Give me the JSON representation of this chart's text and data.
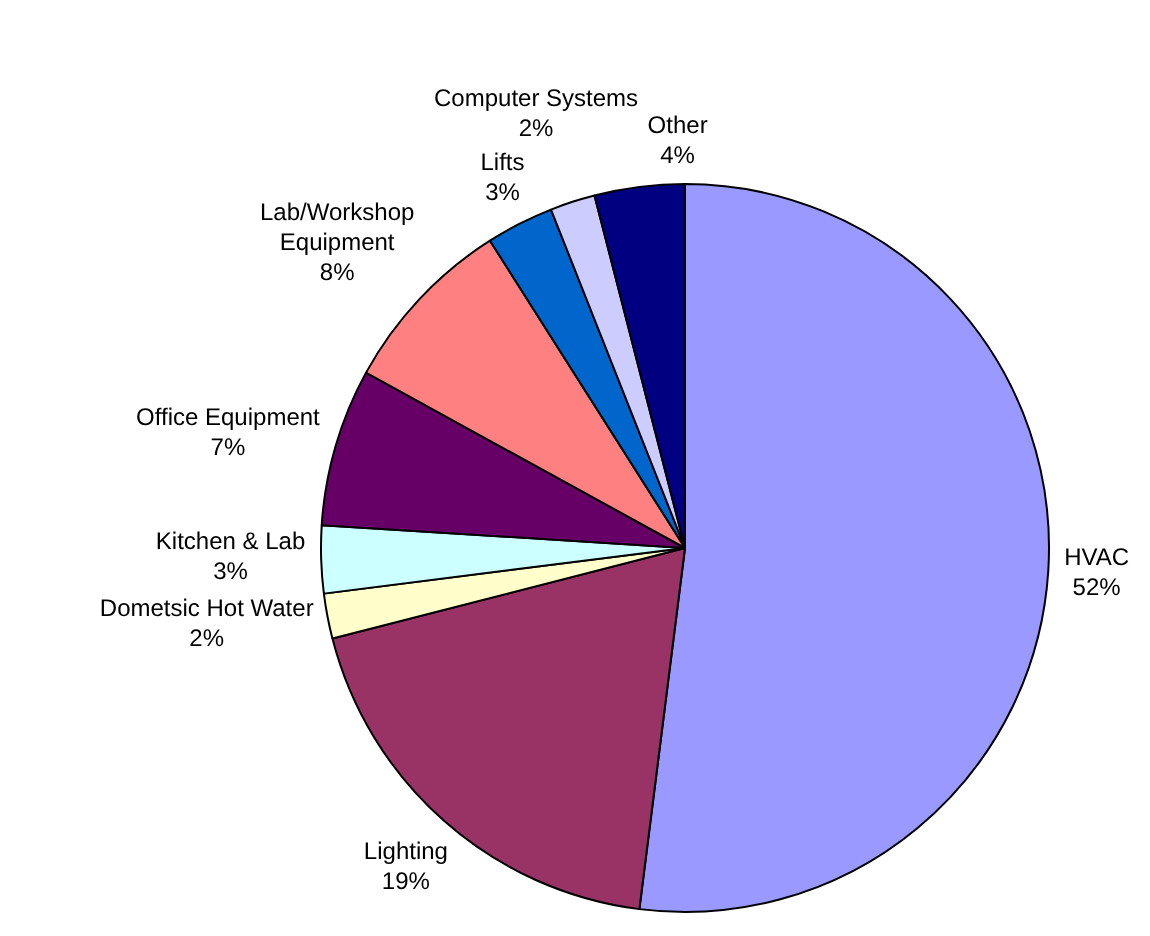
{
  "chart_data": {
    "type": "pie",
    "categories": [
      "HVAC",
      "Lighting",
      "Dometsic Hot Water",
      "Kitchen & Lab",
      "Office Equipment",
      "Lab/Workshop Equipment",
      "Lifts",
      "Computer Systems",
      "Other"
    ],
    "values": [
      52,
      19,
      2,
      3,
      7,
      8,
      3,
      2,
      4
    ],
    "colors": [
      "#9999ff",
      "#993366",
      "#ffffcc",
      "#ccffff",
      "#660066",
      "#ff8080",
      "#0066cc",
      "#ccccff",
      "#000080"
    ],
    "value_labels": [
      "52%",
      "19%",
      "2%",
      "3%",
      "7%",
      "8%",
      "3%",
      "2%",
      "4%"
    ],
    "legend": false
  }
}
